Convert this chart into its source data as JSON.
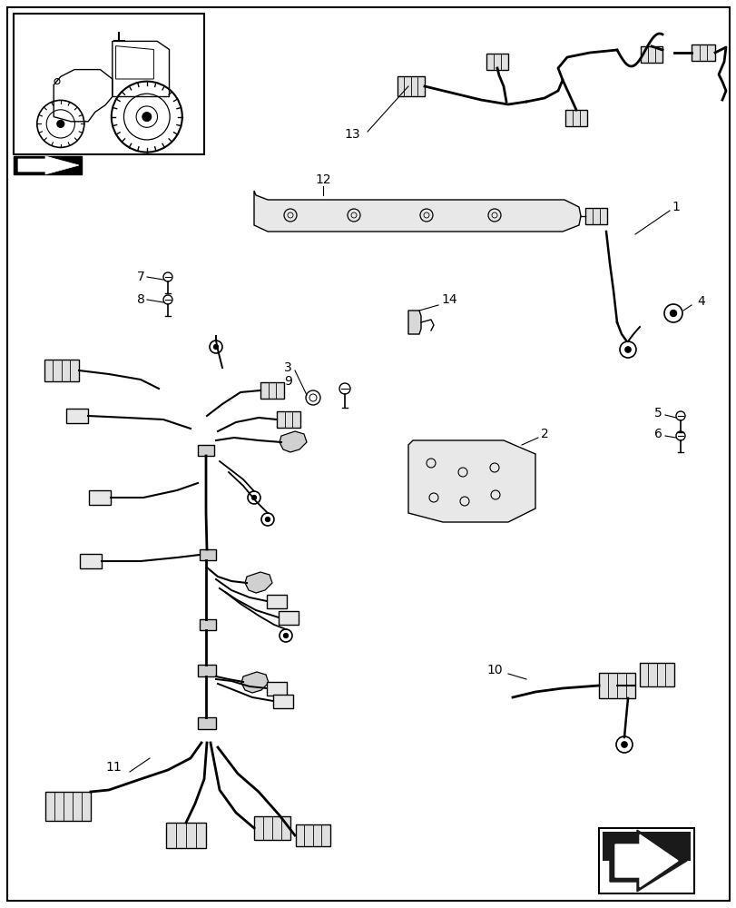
{
  "bg_color": "#ffffff",
  "border_color": "#000000",
  "fig_width": 8.12,
  "fig_height": 10.0,
  "dpi": 100
}
